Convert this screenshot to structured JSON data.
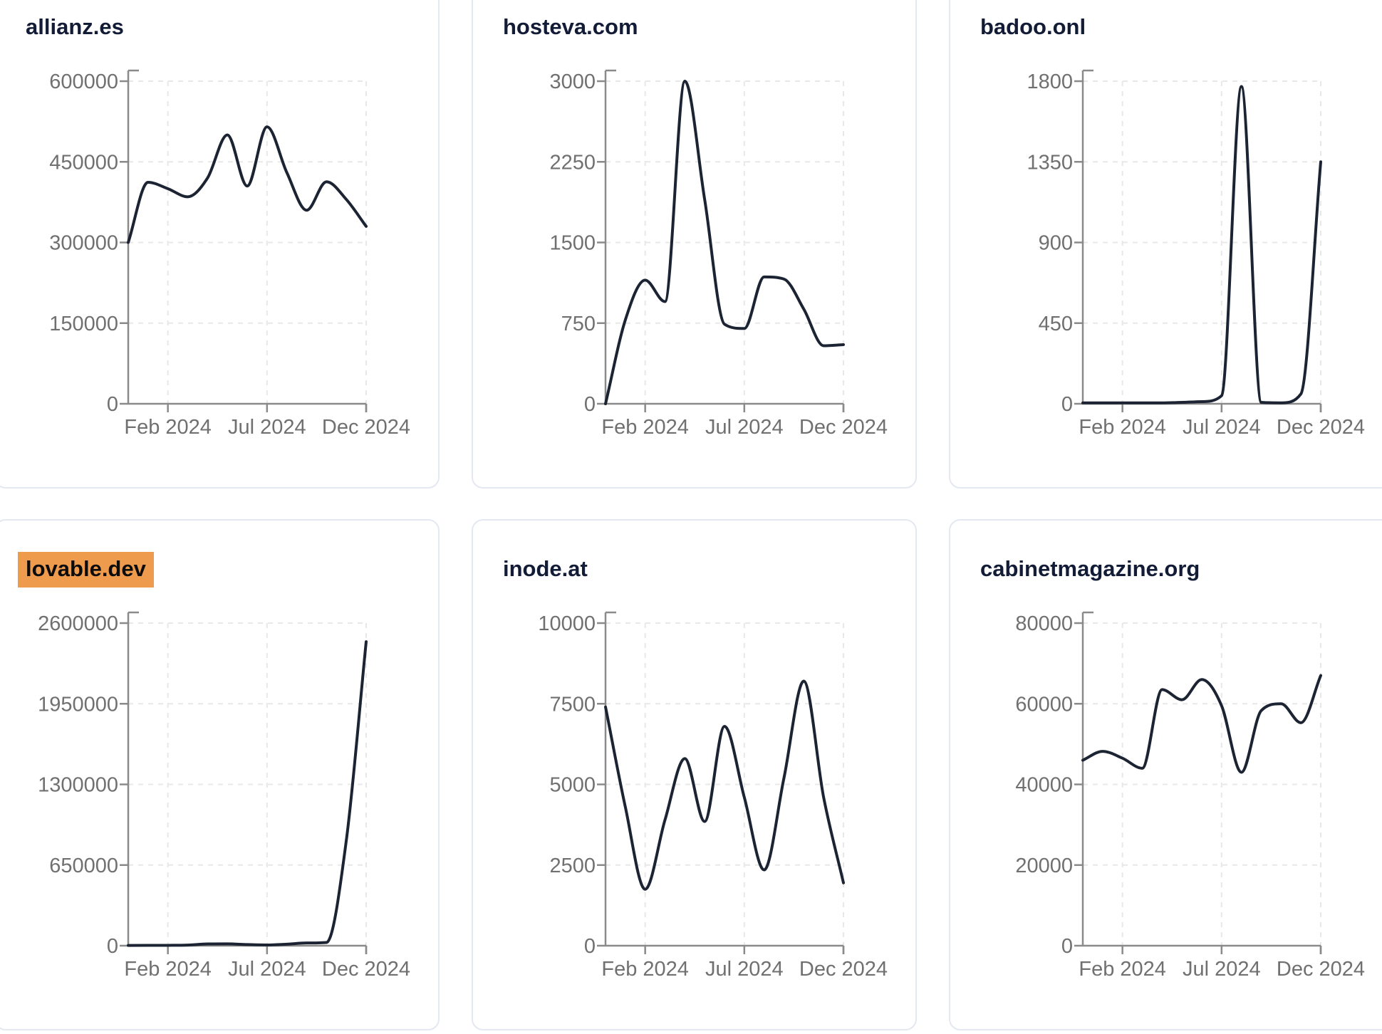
{
  "page": {
    "background": "#ffffff"
  },
  "style": {
    "card_border_color": "#e4e8f0",
    "card_background": "#ffffff",
    "title_color": "#131c36",
    "highlight_color": "#ee9b4e",
    "line_color": "#1c2433",
    "axis_color": "#8a8a8a",
    "grid_color": "#e8e8e8",
    "tick_label_color": "#707070"
  },
  "x_axis": {
    "tick_labels": [
      "Feb 2024",
      "Jul 2024",
      "Dec 2024"
    ],
    "tick_indices": [
      2,
      7,
      12
    ],
    "points_per_series": 13,
    "range_note": "monthly points spanning Dec 2023 to Dec 2024"
  },
  "chart_data": [
    {
      "type": "line",
      "title": "allianz.es",
      "highlighted": false,
      "ylim": [
        0,
        600000
      ],
      "y_ticks": [
        0,
        150000,
        300000,
        450000,
        600000
      ],
      "x_tick_labels": [
        "Feb 2024",
        "Jul 2024",
        "Dec 2024"
      ],
      "values": [
        300000,
        412000,
        400000,
        385000,
        420000,
        500000,
        405000,
        515000,
        430000,
        360000,
        413000,
        380000,
        330000
      ]
    },
    {
      "type": "line",
      "title": "hosteva.com",
      "highlighted": false,
      "ylim": [
        0,
        3000
      ],
      "y_ticks": [
        0,
        750,
        1500,
        2250,
        3000
      ],
      "x_tick_labels": [
        "Feb 2024",
        "Jul 2024",
        "Dec 2024"
      ],
      "values": [
        0,
        780,
        1150,
        950,
        3000,
        1900,
        740,
        700,
        1180,
        1160,
        880,
        540,
        550
      ]
    },
    {
      "type": "line",
      "title": "badoo.onl",
      "highlighted": false,
      "ylim": [
        0,
        1800
      ],
      "y_ticks": [
        0,
        450,
        900,
        1350,
        1800
      ],
      "x_tick_labels": [
        "Feb 2024",
        "Jul 2024",
        "Dec 2024"
      ],
      "values": [
        5,
        5,
        5,
        5,
        5,
        8,
        12,
        45,
        1770,
        8,
        5,
        55,
        1350
      ]
    },
    {
      "type": "line",
      "title": "lovable.dev",
      "highlighted": true,
      "ylim": [
        0,
        2600000
      ],
      "y_ticks": [
        0,
        650000,
        1300000,
        1950000,
        2600000
      ],
      "x_tick_labels": [
        "Feb 2024",
        "Jul 2024",
        "Dec 2024"
      ],
      "values": [
        2000,
        2500,
        3000,
        5000,
        14000,
        15000,
        9000,
        6000,
        12000,
        22000,
        26000,
        850000,
        2450000
      ]
    },
    {
      "type": "line",
      "title": "inode.at",
      "highlighted": false,
      "ylim": [
        0,
        10000
      ],
      "y_ticks": [
        0,
        2500,
        5000,
        7500,
        10000
      ],
      "x_tick_labels": [
        "Feb 2024",
        "Jul 2024",
        "Dec 2024"
      ],
      "values": [
        7400,
        4300,
        1750,
        3900,
        5800,
        3850,
        6800,
        4600,
        2350,
        5200,
        8200,
        4600,
        1950
      ]
    },
    {
      "type": "line",
      "title": "cabinetmagazine.org",
      "highlighted": false,
      "ylim": [
        0,
        80000
      ],
      "y_ticks": [
        0,
        20000,
        40000,
        60000,
        80000
      ],
      "x_tick_labels": [
        "Feb 2024",
        "Jul 2024",
        "Dec 2024"
      ],
      "values": [
        46000,
        48200,
        46500,
        44000,
        63500,
        61000,
        66000,
        59500,
        43000,
        58300,
        60000,
        55300,
        67000
      ]
    }
  ]
}
